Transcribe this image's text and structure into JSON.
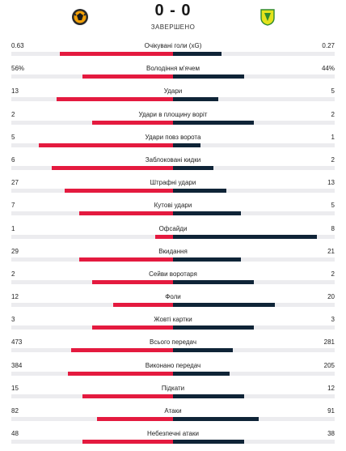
{
  "match": {
    "score": "0 - 0",
    "status": "ЗАВЕРШЕНО",
    "home_logo_icon": "home-team-crest-icon",
    "away_logo_icon": "away-team-crest-icon"
  },
  "colors": {
    "home_bar": "#e41a3f",
    "away_bar": "#0f2437",
    "track": "#ececef"
  },
  "stats": [
    {
      "label": "Очікувані голи (xG)",
      "home": "0.63",
      "away": "0.27",
      "home_share": 0.7,
      "away_share": 0.3
    },
    {
      "label": "Володіння м'ячем",
      "home": "56%",
      "away": "44%",
      "home_share": 0.56,
      "away_share": 0.44
    },
    {
      "label": "Удари",
      "home": "13",
      "away": "5",
      "home_share": 0.72,
      "away_share": 0.28
    },
    {
      "label": "Удари в площину воріт",
      "home": "2",
      "away": "2",
      "home_share": 0.5,
      "away_share": 0.5
    },
    {
      "label": "Удари повз ворота",
      "home": "5",
      "away": "1",
      "home_share": 0.83,
      "away_share": 0.17
    },
    {
      "label": "Заблоковані кидки",
      "home": "6",
      "away": "2",
      "home_share": 0.75,
      "away_share": 0.25
    },
    {
      "label": "Штрафні удари",
      "home": "27",
      "away": "13",
      "home_share": 0.67,
      "away_share": 0.33
    },
    {
      "label": "Кутові удари",
      "home": "7",
      "away": "5",
      "home_share": 0.58,
      "away_share": 0.42
    },
    {
      "label": "Офсайди",
      "home": "1",
      "away": "8",
      "home_share": 0.11,
      "away_share": 0.89
    },
    {
      "label": "Вкидання",
      "home": "29",
      "away": "21",
      "home_share": 0.58,
      "away_share": 0.42
    },
    {
      "label": "Сейви воротаря",
      "home": "2",
      "away": "2",
      "home_share": 0.5,
      "away_share": 0.5
    },
    {
      "label": "Фоли",
      "home": "12",
      "away": "20",
      "home_share": 0.37,
      "away_share": 0.63
    },
    {
      "label": "Жовті картки",
      "home": "3",
      "away": "3",
      "home_share": 0.5,
      "away_share": 0.5
    },
    {
      "label": "Всього передач",
      "home": "473",
      "away": "281",
      "home_share": 0.63,
      "away_share": 0.37
    },
    {
      "label": "Виконано передач",
      "home": "384",
      "away": "205",
      "home_share": 0.65,
      "away_share": 0.35
    },
    {
      "label": "Підкати",
      "home": "15",
      "away": "12",
      "home_share": 0.56,
      "away_share": 0.44
    },
    {
      "label": "Атаки",
      "home": "82",
      "away": "91",
      "home_share": 0.47,
      "away_share": 0.53
    },
    {
      "label": "Небезпечні атаки",
      "home": "48",
      "away": "38",
      "home_share": 0.56,
      "away_share": 0.44
    }
  ]
}
